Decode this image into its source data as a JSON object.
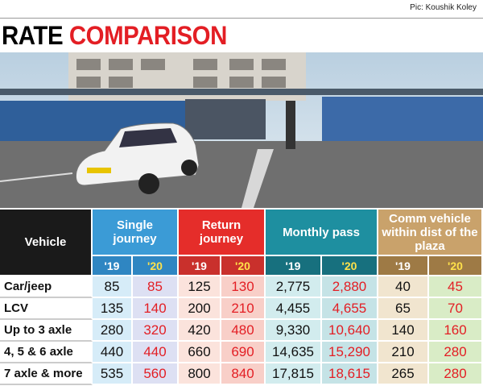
{
  "header": {
    "credit": "Pic: Koushik Koley",
    "title_black": "RATE",
    "title_red": "COMPARISON"
  },
  "table": {
    "headers": [
      "Vehicle",
      "Single journey",
      "Return journey",
      "Monthly pass",
      "Comm vehicle within dist of the plaza"
    ],
    "years": [
      "'19",
      "'20"
    ],
    "rows": [
      [
        "Car/jeep",
        "85",
        "85",
        "125",
        "130",
        "2,775",
        "2,880",
        "40",
        "45"
      ],
      [
        "LCV",
        "135",
        "140",
        "200",
        "210",
        "4,455",
        "4,655",
        "65",
        "70"
      ],
      [
        "Up to 3 axle",
        "280",
        "320",
        "420",
        "480",
        "9,330",
        "10,640",
        "140",
        "160"
      ],
      [
        "4, 5 & 6 axle",
        "440",
        "440",
        "660",
        "690",
        "14,635",
        "15,290",
        "210",
        "280"
      ],
      [
        "7 axle & more",
        "535",
        "560",
        "800",
        "840",
        "17,815",
        "18,615",
        "265",
        "280"
      ]
    ]
  }
}
